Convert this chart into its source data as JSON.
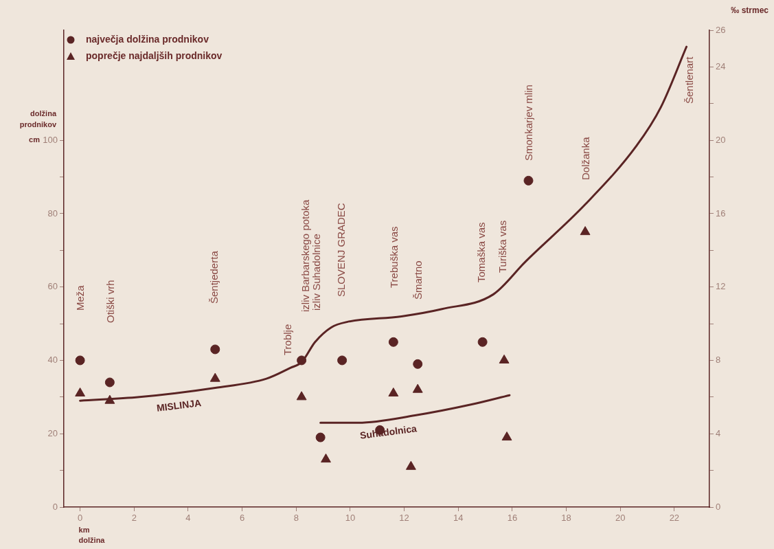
{
  "chart_data": {
    "type": "scatter",
    "xlabel": "km dolžina",
    "ylabel": "dolžina prodnikov cm",
    "y2label": "‰ strmec",
    "xlim": [
      -0.6,
      23.3
    ],
    "xticks": [
      0,
      2,
      4,
      6,
      8,
      10,
      12,
      14,
      16,
      18,
      20,
      22
    ],
    "ylim": [
      0,
      130
    ],
    "yticks": [
      0,
      {
        "value": 10,
        "label": null
      },
      20,
      {
        "value": 30,
        "label": null
      },
      40,
      {
        "value": 50,
        "label": null
      },
      60,
      {
        "value": 70,
        "label": null
      },
      80,
      {
        "value": 90,
        "label": null
      },
      100
    ],
    "y2lim": [
      0,
      26
    ],
    "y2ticks": [
      0,
      {
        "value": 2,
        "label": null
      },
      4,
      {
        "value": 6,
        "label": null
      },
      8,
      {
        "value": 10,
        "label": null
      },
      12,
      {
        "value": 14,
        "label": null
      },
      16,
      {
        "value": 18,
        "label": null
      },
      20,
      {
        "value": 22,
        "label": null
      },
      24,
      26
    ],
    "grid": false,
    "legend": "top left",
    "series": [
      {
        "name": "največja dolžina prodnikov",
        "type": "scatter",
        "marker": "circle",
        "color": "#5a2424",
        "x": [
          0,
          1.1,
          5.0,
          8.2,
          8.9,
          9.7,
          11.1,
          11.6,
          12.5,
          14.9,
          16.6
        ],
        "values": [
          40,
          34,
          43,
          40,
          19,
          40,
          21,
          45,
          39,
          45,
          89
        ]
      },
      {
        "name": "poprečje najdaljših prodnikov",
        "type": "scatter",
        "marker": "triangle",
        "color": "#5a2424",
        "x": [
          0,
          1.1,
          5.0,
          8.2,
          9.1,
          11.6,
          12.25,
          12.5,
          15.7,
          15.8,
          18.7
        ],
        "values": [
          31,
          29,
          35,
          30,
          13,
          31,
          11,
          32,
          40,
          19,
          75
        ]
      },
      {
        "name": "MISLINJA",
        "type": "line",
        "axis": "y2",
        "marker": "none",
        "color": "#5a2424",
        "x": [
          0,
          2.2,
          5.0,
          6.9,
          7.8,
          8.2,
          8.7,
          9.3,
          9.9,
          11.9,
          13.4,
          15.3,
          16.5,
          18.7,
          20.6,
          21.5,
          22.45
        ],
        "values": [
          5.8,
          6.0,
          6.5,
          7.0,
          7.6,
          7.9,
          9.0,
          9.8,
          10.1,
          10.4,
          10.8,
          11.6,
          13.4,
          16.5,
          19.7,
          21.8,
          25.1
        ]
      },
      {
        "name": "Suhadolnica",
        "type": "line",
        "axis": "y2",
        "marker": "none",
        "color": "#5a2424",
        "x": [
          8.9,
          10.3,
          12.4,
          14.5,
          15.9
        ],
        "values": [
          4.6,
          4.6,
          5.0,
          5.6,
          6.1
        ]
      }
    ],
    "annotations": [
      "Meža",
      "Otiški vrh",
      "Šentjederta",
      "Troblje",
      "izliv Barbarskego potoka",
      "izliv Suhadolnice",
      "SLOVENJ GRADEC",
      "Trebuška vas",
      "Šmartno",
      "Tomaška vas",
      "Turiška vas",
      "Smonkarjev mlin",
      "Dolžanka",
      "Šentlenart"
    ]
  }
}
